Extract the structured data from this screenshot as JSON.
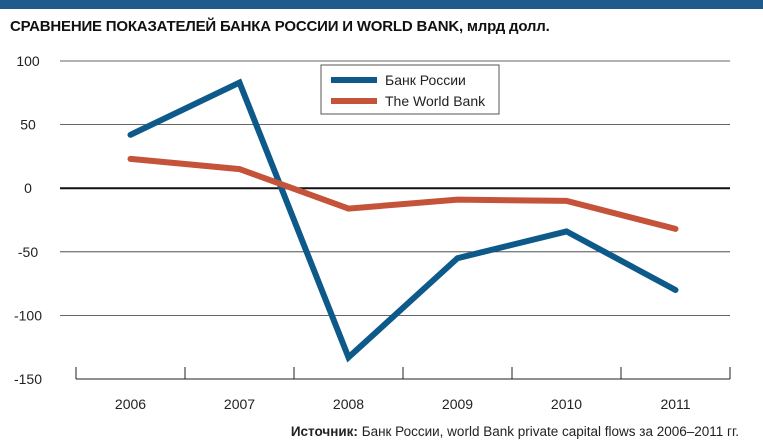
{
  "header": {
    "title": "СРАВНЕНИЕ ПОКАЗАТЕЛЕЙ БАНКА РОССИИ И WORLD BANK, млрд долл."
  },
  "footer": {
    "source_label": "Источник:",
    "source_text": "Банк России, world Bank private capital flows за 2006–2011 гг."
  },
  "colors": {
    "top_bar": "#1f5a8c",
    "bank_of_russia": "#0d5a8a",
    "world_bank": "#c4533a",
    "grid": "#333333",
    "zero_line": "#111111"
  },
  "chart_data": {
    "type": "line",
    "title": "СРАВНЕНИЕ ПОКАЗАТЕЛЕЙ БАНКА РОССИИ И WORLD BANK, млрд долл.",
    "xlabel": "",
    "ylabel": "",
    "categories": [
      "2006",
      "2007",
      "2008",
      "2009",
      "2010",
      "2011"
    ],
    "yticks": [
      100,
      50,
      0,
      -50,
      -100,
      -150
    ],
    "ylim": [
      -150,
      100
    ],
    "grid": true,
    "legend_position": "top-center",
    "series": [
      {
        "name": "Банк России",
        "color": "#0d5a8a",
        "values": [
          42,
          83,
          -133,
          -55,
          -34,
          -80
        ]
      },
      {
        "name": "The World Bank",
        "color": "#c4533a",
        "values": [
          23,
          15,
          -16,
          -9,
          -10,
          -32
        ]
      }
    ]
  }
}
